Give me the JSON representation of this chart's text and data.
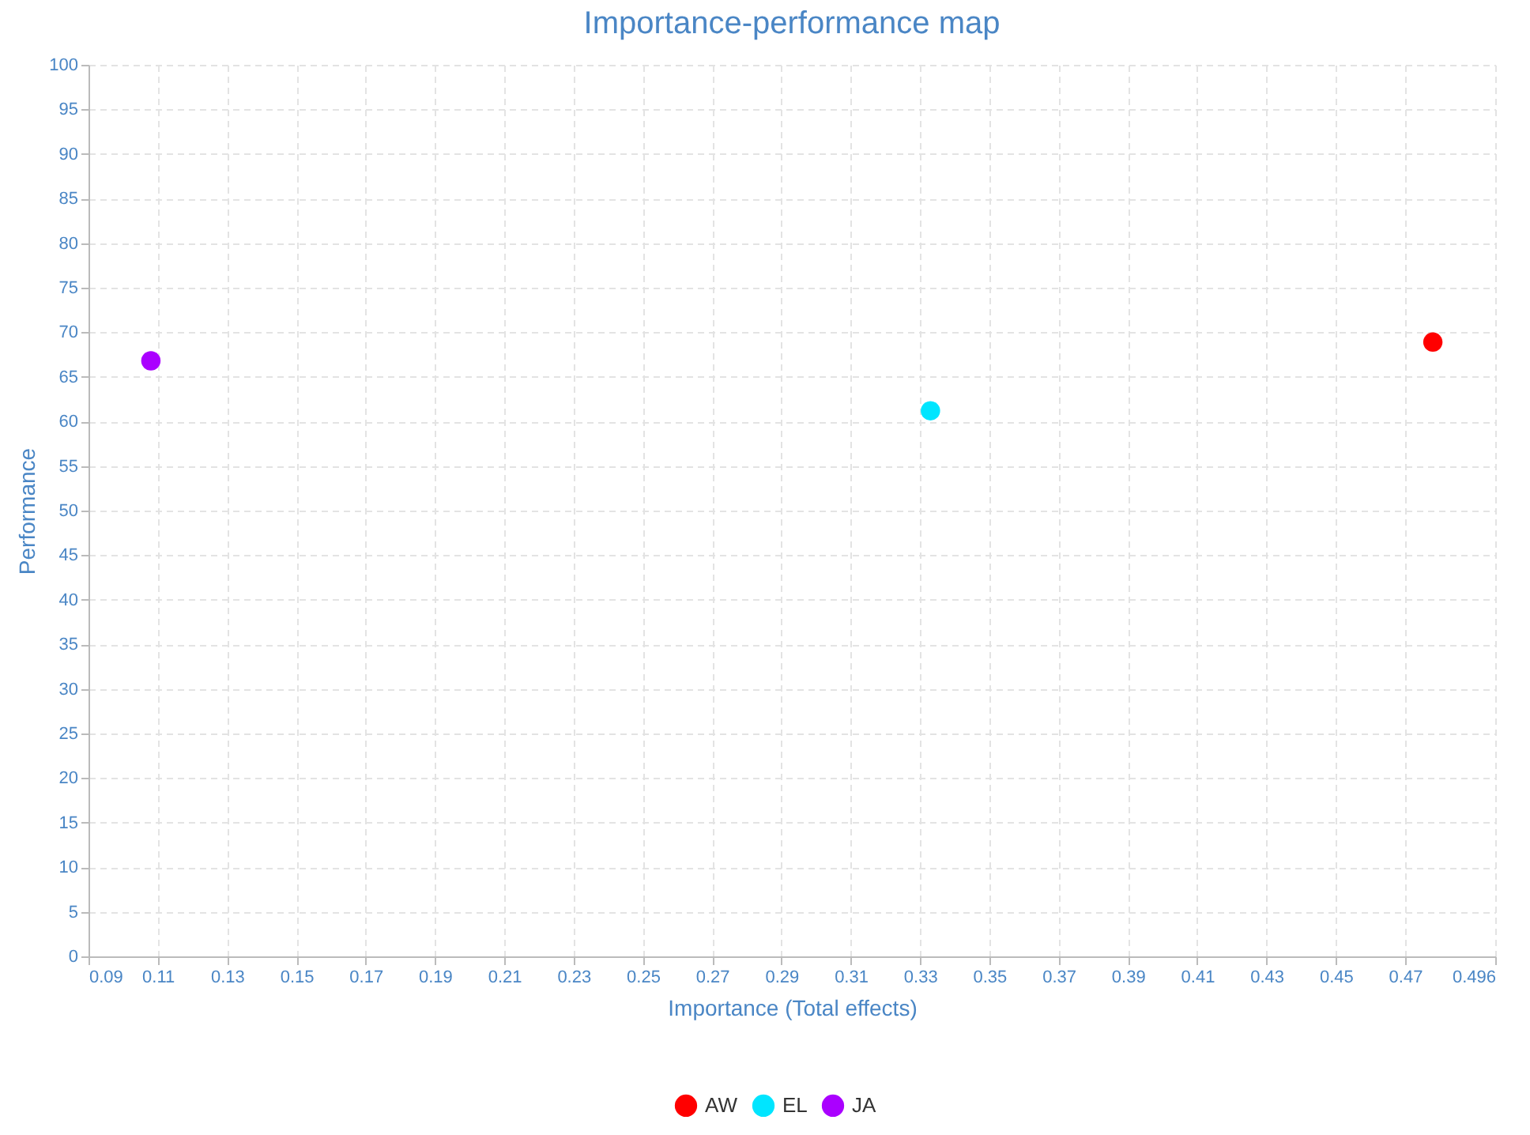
{
  "chart_data": {
    "type": "scatter",
    "title": "Importance-performance map",
    "xlabel": "Importance (Total effects)",
    "ylabel": "Performance",
    "xlim": [
      0.09,
      0.496
    ],
    "xticks": [
      0.09,
      0.11,
      0.13,
      0.15,
      0.17,
      0.19,
      0.21,
      0.23,
      0.25,
      0.27,
      0.29,
      0.31,
      0.33,
      0.35,
      0.37,
      0.39,
      0.41,
      0.43,
      0.45,
      0.47,
      0.496
    ],
    "ylim": [
      0,
      100
    ],
    "yticks": [
      0,
      5,
      10,
      15,
      20,
      25,
      30,
      35,
      40,
      45,
      50,
      55,
      60,
      65,
      70,
      75,
      80,
      85,
      90,
      95,
      100
    ],
    "series": [
      {
        "name": "AW",
        "color": "#ff0000",
        "x": [
          0.478
        ],
        "values": [
          68.9
        ]
      },
      {
        "name": "EL",
        "color": "#00e5ff",
        "x": [
          0.333
        ],
        "values": [
          61.2
        ]
      },
      {
        "name": "JA",
        "color": "#aa00ff",
        "x": [
          0.108
        ],
        "values": [
          66.8
        ]
      }
    ],
    "grid": true,
    "legend": "bottom",
    "marker": "circle"
  }
}
